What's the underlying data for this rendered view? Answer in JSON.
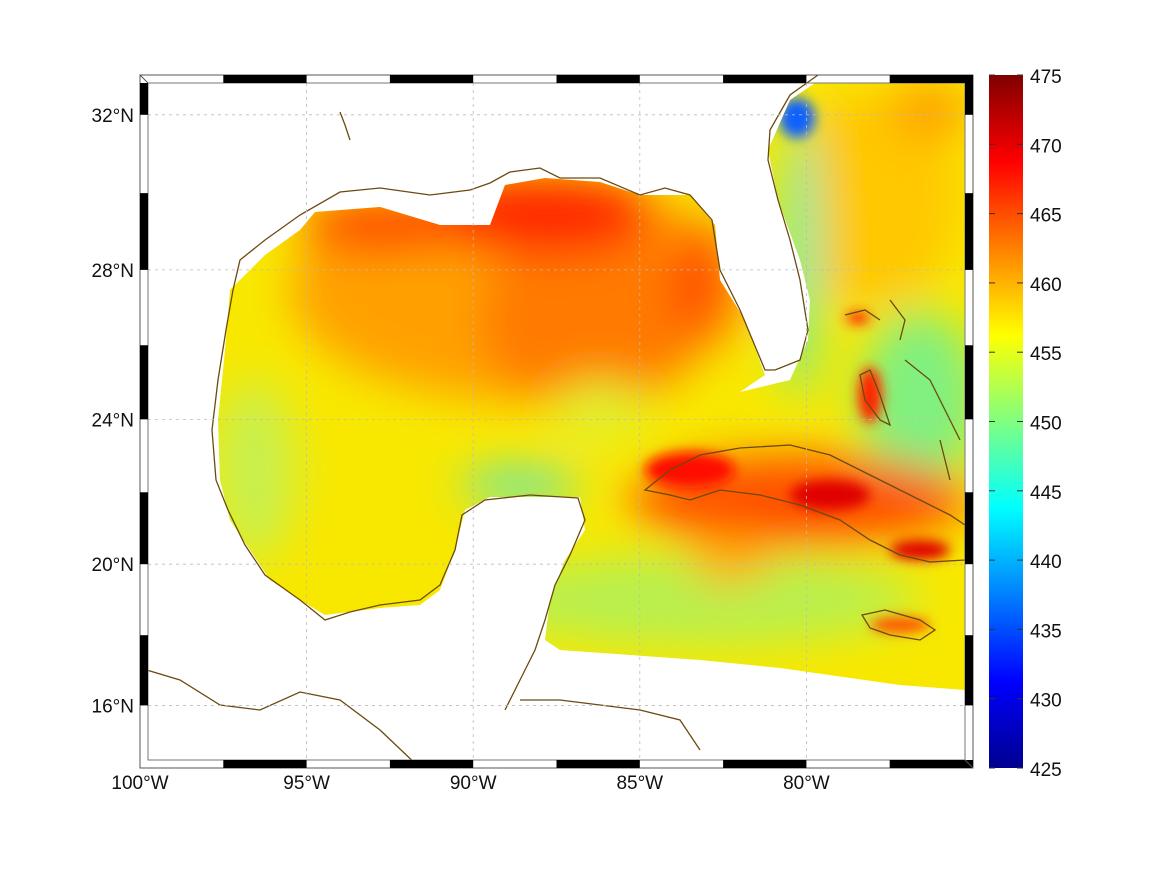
{
  "map": {
    "lon_range": [
      -100,
      -75
    ],
    "lat_range": [
      14.2,
      33
    ],
    "lon_ticks": [
      {
        "value": -100,
        "label": "100°W"
      },
      {
        "value": -95,
        "label": "95°W"
      },
      {
        "value": -90,
        "label": "90°W"
      },
      {
        "value": -85,
        "label": "85°W"
      },
      {
        "value": -80,
        "label": "80°W"
      }
    ],
    "lat_ticks": [
      {
        "value": 32,
        "label": "32°N"
      },
      {
        "value": 28,
        "label": "28°N"
      },
      {
        "value": 24,
        "label": "24°N"
      },
      {
        "value": 20,
        "label": "20°N"
      },
      {
        "value": 16,
        "label": "16°N"
      }
    ],
    "coastline_color": "#6b4a10"
  },
  "colorbar": {
    "min": 425,
    "max": 475,
    "ticks": [
      "475",
      "470",
      "465",
      "460",
      "455",
      "450",
      "445",
      "440",
      "435",
      "430",
      "425"
    ],
    "colormap": [
      "#00008f",
      "#0000ff",
      "#0080ff",
      "#00ffff",
      "#80ff80",
      "#ffff00",
      "#ff8000",
      "#ff0000",
      "#800000"
    ]
  }
}
